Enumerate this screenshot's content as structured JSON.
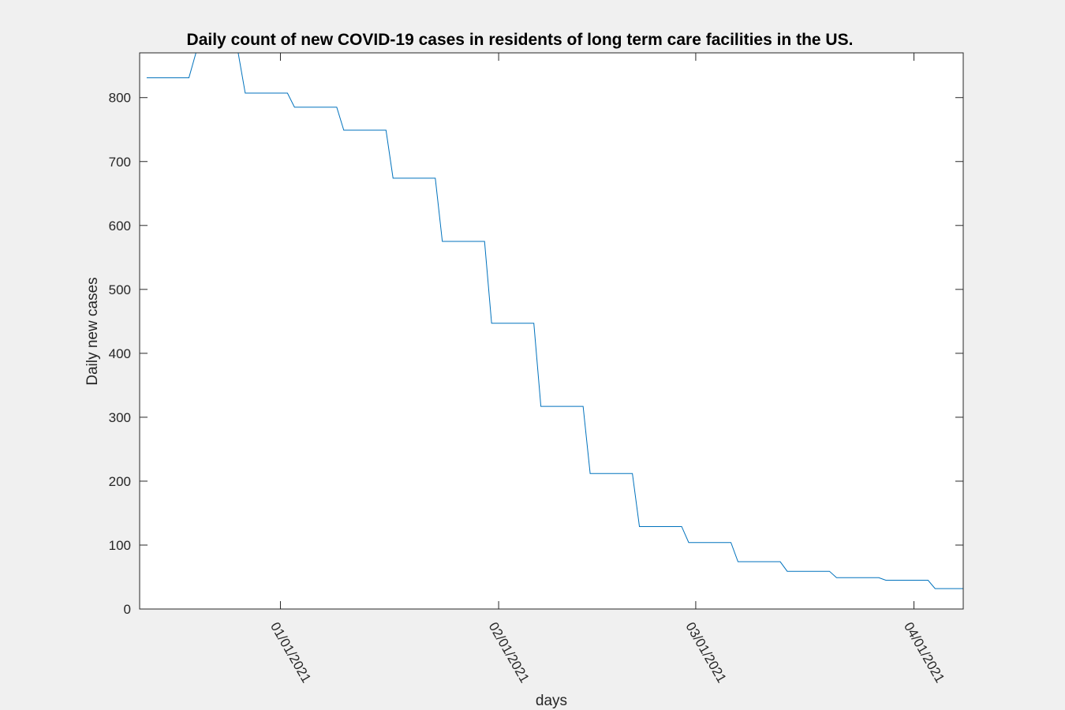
{
  "chart_data": {
    "type": "line",
    "title": "Daily count of new COVID-19 cases in residents of long term care facilities in the US.",
    "xlabel": "days",
    "ylabel": "Daily new cases",
    "xlim": [
      "2020-12-12",
      "2021-04-08"
    ],
    "ylim": [
      0,
      870
    ],
    "yticks": [
      0,
      100,
      200,
      300,
      400,
      500,
      600,
      700,
      800
    ],
    "xticks": [
      {
        "date": "2021-01-01",
        "label": "01/01/2021"
      },
      {
        "date": "2021-02-01",
        "label": "02/01/2021"
      },
      {
        "date": "2021-03-01",
        "label": "03/01/2021"
      },
      {
        "date": "2021-04-01",
        "label": "04/01/2021"
      }
    ],
    "grid": false,
    "line_color": "#0072bd",
    "series": [
      {
        "x": [
          "2020-12-13",
          "2020-12-19",
          "2020-12-20",
          "2020-12-26",
          "2020-12-27",
          "2021-01-02",
          "2021-01-03",
          "2021-01-09",
          "2021-01-10",
          "2021-01-16",
          "2021-01-17",
          "2021-01-23",
          "2021-01-24",
          "2021-01-30",
          "2021-01-31",
          "2021-02-06",
          "2021-02-07",
          "2021-02-13",
          "2021-02-14",
          "2021-02-20",
          "2021-02-21",
          "2021-02-27",
          "2021-02-28",
          "2021-03-06",
          "2021-03-07",
          "2021-03-13",
          "2021-03-14",
          "2021-03-20",
          "2021-03-21",
          "2021-03-27",
          "2021-03-28",
          "2021-04-03",
          "2021-04-04",
          "2021-04-08"
        ],
        "y": [
          831,
          831,
          870,
          870,
          807,
          807,
          785,
          785,
          749,
          749,
          674,
          674,
          575,
          575,
          447,
          447,
          317,
          317,
          212,
          212,
          129,
          129,
          104,
          104,
          74,
          74,
          59,
          59,
          49,
          49,
          45,
          45,
          32,
          32
        ]
      }
    ]
  }
}
